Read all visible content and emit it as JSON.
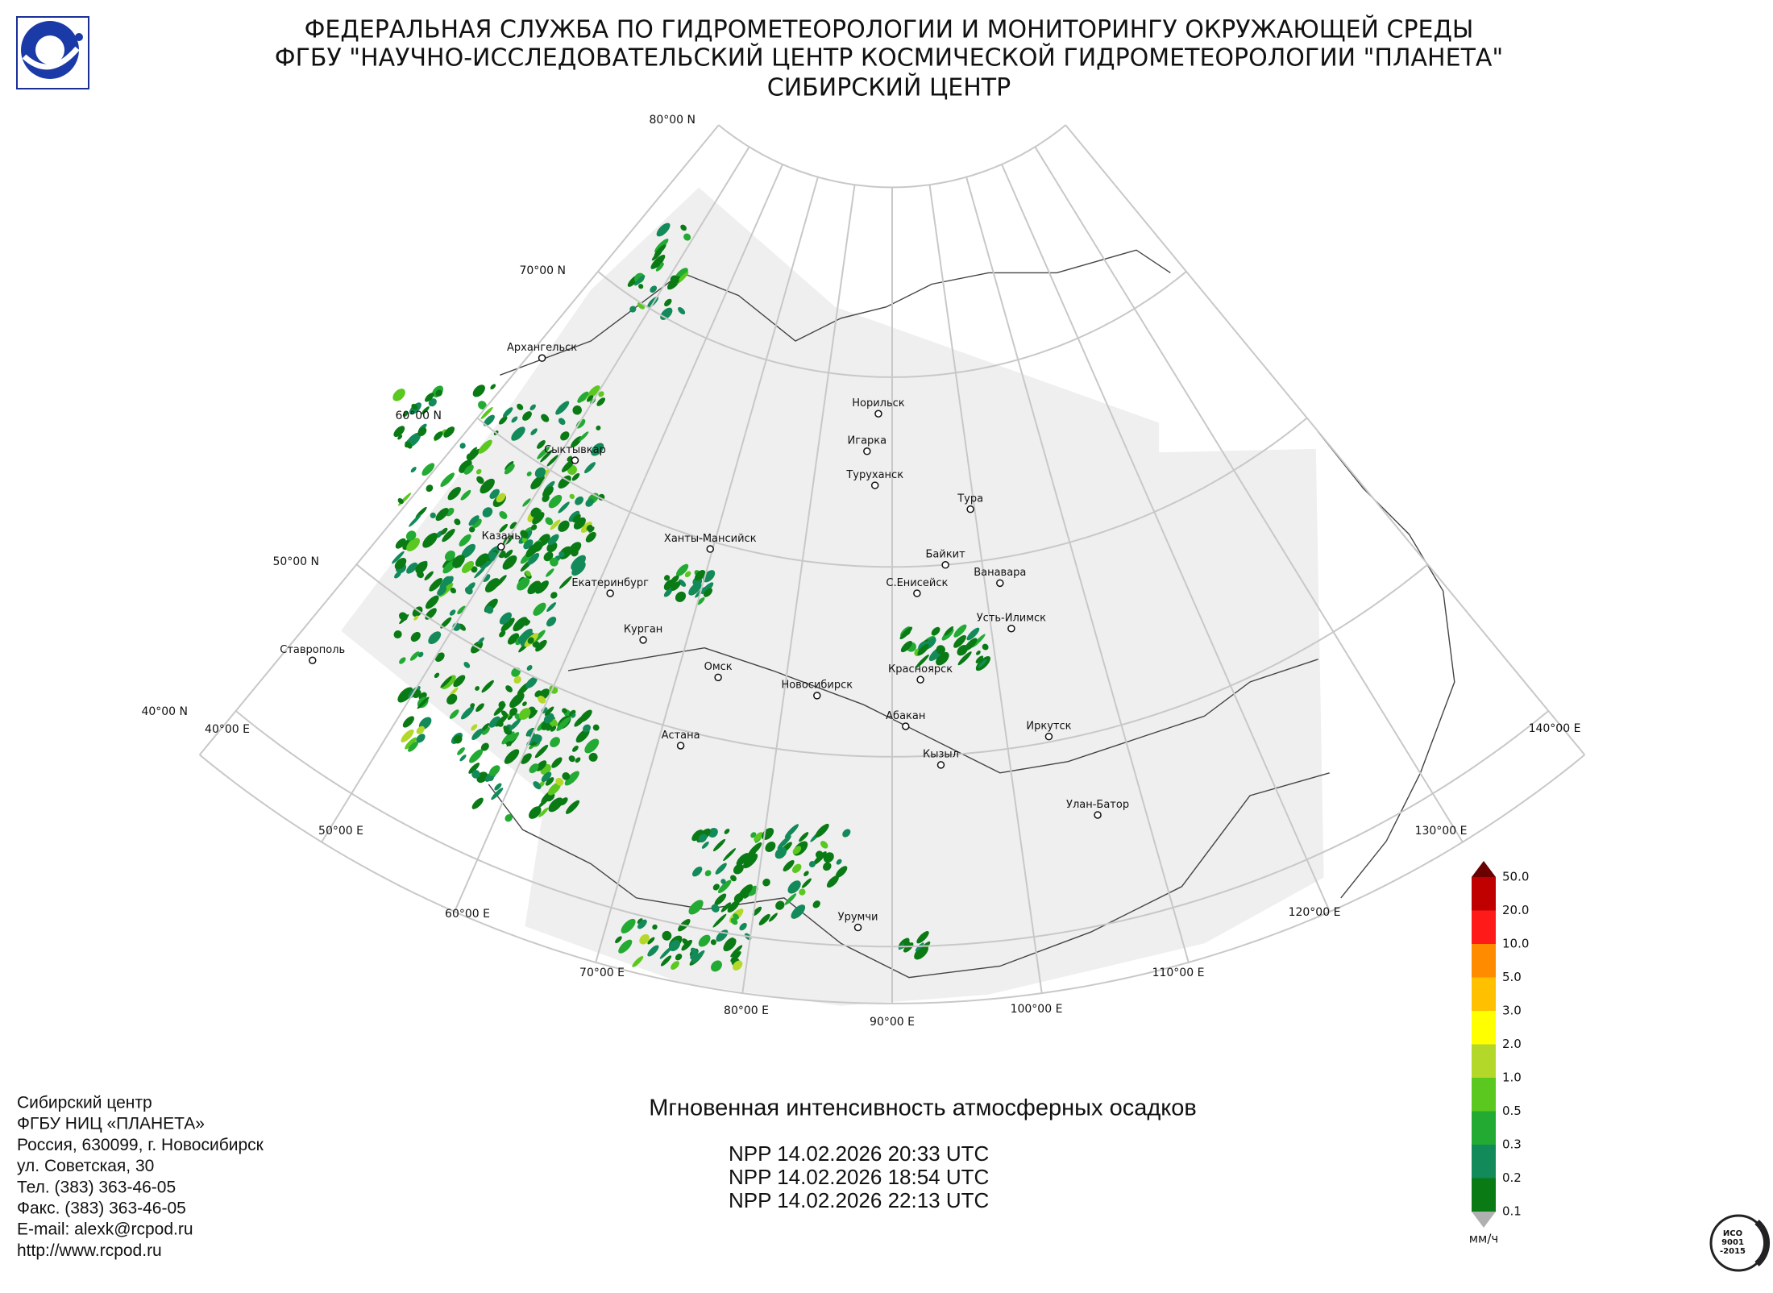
{
  "header": {
    "lines": [
      "ФЕДЕРАЛЬНАЯ СЛУЖБА ПО ГИДРОМЕТЕОРОЛОГИИ И МОНИТОРИНГУ ОКРУЖАЮЩЕЙ СРЕДЫ",
      "ФГБУ \"НАУЧНО-ИССЛЕДОВАТЕЛЬСКИЙ ЦЕНТР КОСМИЧЕСКОЙ ГИДРОМЕТЕОРОЛОГИИ \"ПЛАНЕТА\"",
      "СИБИРСКИЙ ЦЕНТР"
    ]
  },
  "map": {
    "lat_labels": [
      "80°00 N",
      "70°00 N",
      "60°00 N",
      "50°00 N",
      "40°00 N"
    ],
    "lon_labels": [
      "40°00 E",
      "50°00 E",
      "60°00 E",
      "70°00 E",
      "80°00 E",
      "90°00 E",
      "100°00 E",
      "110°00 E",
      "120°00 E",
      "130°00 E",
      "140°00 E"
    ],
    "cities": [
      "Архангельск",
      "Сыктывкар",
      "Казань",
      "Екатеринбург",
      "Ханты-Мансийск",
      "Курган",
      "Ставрополь",
      "Омск",
      "Астана",
      "Новосибирск",
      "Норильск",
      "Игарка",
      "Туруханск",
      "Тура",
      "Байкит",
      "С.Енисейск",
      "Ванавара",
      "Усть-Илимск",
      "Красноярск",
      "Абакан",
      "Иркутск",
      "Кызыл",
      "Улан-Батор",
      "Урумчи"
    ]
  },
  "legend": {
    "labels": [
      "50.0",
      "20.0",
      "10.0",
      "5.0",
      "3.0",
      "2.0",
      "1.0",
      "0.5",
      "0.3",
      "0.2",
      "0.1"
    ],
    "unit": "мм/ч",
    "colors": [
      "#c00000",
      "#ff1a1a",
      "#ff8c00",
      "#ffc000",
      "#ffff00",
      "#b4d82a",
      "#5ac81e",
      "#22aa33",
      "#128a5a",
      "#0a7a14"
    ]
  },
  "product": {
    "title": "Мгновенная интенсивность атмосферных осадков",
    "passes": [
      "NPP 14.02.2026  20:33 UTC",
      "NPP 14.02.2026  18:54 UTC",
      "NPP 14.02.2026  22:13 UTC"
    ]
  },
  "contacts": {
    "lines": [
      "Сибирский центр",
      "ФГБУ НИЦ «ПЛАНЕТА»",
      "Россия, 630099, г. Новосибирск",
      "ул. Советская, 30",
      "Тел. (383) 363-46-05",
      "Факс. (383) 363-46-05",
      "E-mail: alexk@rcpod.ru",
      "http://www.rcpod.ru"
    ]
  },
  "iso": {
    "lines": [
      "ИСО",
      "9001",
      "-2015"
    ]
  }
}
